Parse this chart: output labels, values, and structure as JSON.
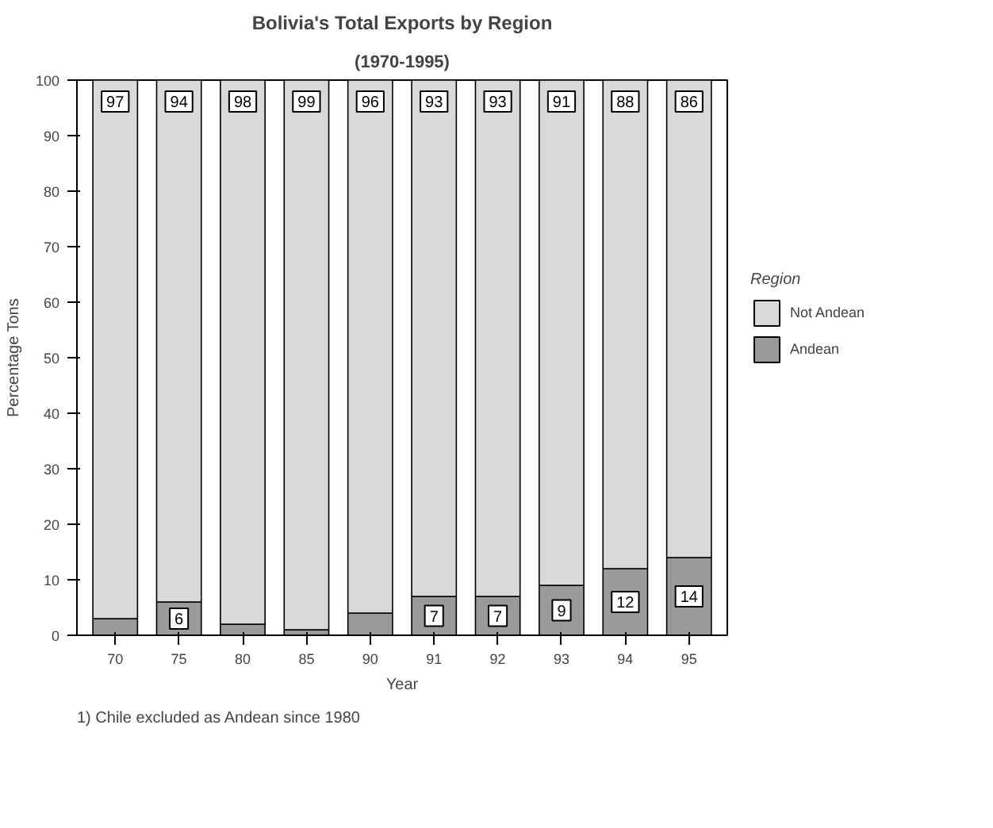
{
  "chart_data": {
    "type": "bar",
    "title": "Bolivia's Total Exports by Region",
    "subtitle": "(1970-1995)",
    "xlabel": "Year",
    "ylabel": "Percentage Tons",
    "legend_title": "Region",
    "legend": "right",
    "stacked": true,
    "categories": [
      "70",
      "75",
      "80",
      "85",
      "90",
      "91",
      "92",
      "93",
      "94",
      "95"
    ],
    "series": [
      {
        "name": "Andean",
        "color": "#9a9a9a",
        "values": [
          3,
          6,
          2,
          1,
          4,
          7,
          7,
          9,
          12,
          14
        ],
        "value_labels": [
          null,
          "6",
          null,
          null,
          null,
          "7",
          "7",
          "9",
          "12",
          "14"
        ]
      },
      {
        "name": "Not Andean",
        "color": "#d9d9d9",
        "values": [
          97,
          94,
          98,
          99,
          96,
          93,
          93,
          91,
          88,
          86
        ],
        "value_labels": [
          "97",
          "94",
          "98",
          "99",
          "96",
          "93",
          "93",
          "91",
          "88",
          "86"
        ]
      }
    ],
    "ylim": [
      0,
      100
    ],
    "yticks": [
      0,
      10,
      20,
      30,
      40,
      50,
      60,
      70,
      80,
      90,
      100
    ],
    "annotations": [
      "1) Chile excluded as Andean since 1980"
    ]
  }
}
